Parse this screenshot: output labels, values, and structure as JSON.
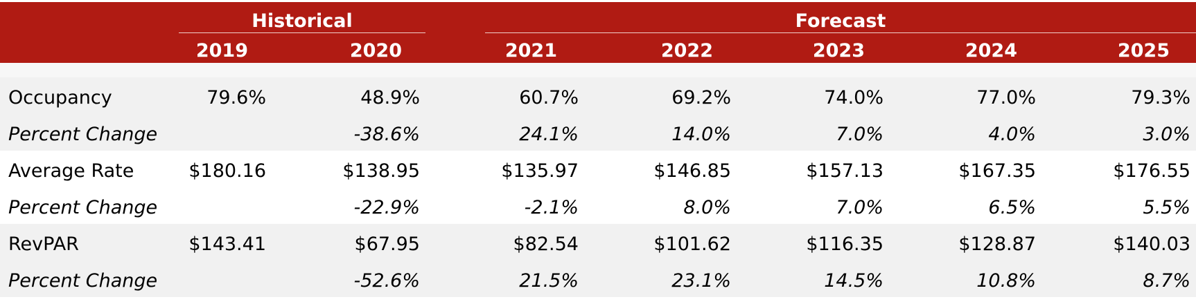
{
  "chart_data": {
    "type": "table",
    "groups": [
      {
        "label": "Historical"
      },
      {
        "label": "Forecast"
      }
    ],
    "columns": [
      "2019",
      "2020",
      "2021",
      "2022",
      "2023",
      "2024",
      "2025"
    ],
    "rows": [
      {
        "label": "Occupancy",
        "italic": false,
        "values": [
          "79.6%",
          "48.9%",
          "60.7%",
          "69.2%",
          "74.0%",
          "77.0%",
          "79.3%"
        ]
      },
      {
        "label": "Percent Change",
        "italic": true,
        "values": [
          "",
          "-38.6%",
          "24.1%",
          "14.0%",
          "7.0%",
          "4.0%",
          "3.0%"
        ]
      },
      {
        "label": "Average Rate",
        "italic": false,
        "values": [
          "$180.16",
          "$138.95",
          "$135.97",
          "$146.85",
          "$157.13",
          "$167.35",
          "$176.55"
        ]
      },
      {
        "label": "Percent Change",
        "italic": true,
        "values": [
          "",
          "-22.9%",
          "-2.1%",
          "8.0%",
          "7.0%",
          "6.5%",
          "5.5%"
        ]
      },
      {
        "label": "RevPAR",
        "italic": false,
        "values": [
          "$143.41",
          "$67.95",
          "$82.54",
          "$101.62",
          "$116.35",
          "$128.87",
          "$140.03"
        ]
      },
      {
        "label": "Percent Change",
        "italic": true,
        "values": [
          "",
          "-52.6%",
          "21.5%",
          "23.1%",
          "14.5%",
          "10.8%",
          "8.7%"
        ]
      }
    ],
    "colors": {
      "header_background": "#b01b13",
      "header_text": "#ffffff",
      "band_shade": "#f1f1f1"
    }
  }
}
